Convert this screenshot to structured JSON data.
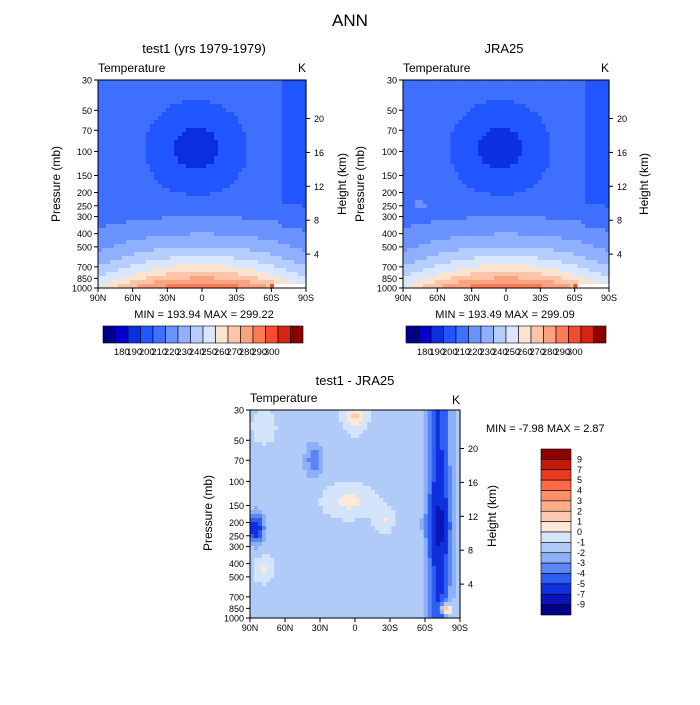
{
  "figure_title": "ANN",
  "chart_data": [
    {
      "type": "heatmap",
      "panel": "model",
      "title": "test1 (yrs 1979-1979)",
      "variable_label": "Temperature",
      "unit": "K",
      "ylabel": "Pressure (mb)",
      "ylabel_right": "Height (km)",
      "x_ticks": [
        "90N",
        "60N",
        "30N",
        "0",
        "30S",
        "60S",
        "90S"
      ],
      "x_values": [
        90,
        60,
        30,
        0,
        -30,
        -60,
        -90
      ],
      "y_ticks": [
        "30",
        "50",
        "70",
        "100",
        "150",
        "200",
        "250",
        "300",
        "400",
        "500",
        "700",
        "850",
        "1000"
      ],
      "y_values": [
        30,
        50,
        70,
        100,
        150,
        200,
        250,
        300,
        400,
        500,
        700,
        850,
        1000
      ],
      "height_ticks": [
        "20",
        "16",
        "12",
        "8",
        "4"
      ],
      "min_max_text": "MIN = 193.94   MAX = 299.22",
      "min": 193.94,
      "max": 299.22,
      "colorbar_labels": [
        "180",
        "190",
        "200",
        "210",
        "220",
        "230",
        "240",
        "250",
        "260",
        "270",
        "280",
        "290",
        "300"
      ],
      "colorbar_levels": [
        180,
        190,
        200,
        210,
        220,
        230,
        240,
        250,
        260,
        270,
        280,
        290,
        300
      ],
      "colorbar_colors": [
        "#00008b",
        "#0000cd",
        "#0a2fe0",
        "#2155ff",
        "#3f6fff",
        "#6a93ff",
        "#8fb0ff",
        "#b6cdff",
        "#d8e6ff",
        "#fbe3d2",
        "#fcc4a8",
        "#fca27f",
        "#fc7a55",
        "#f64c2d",
        "#d42412",
        "#8b0000"
      ]
    },
    {
      "type": "heatmap",
      "panel": "obs",
      "title": "JRA25",
      "variable_label": "Temperature",
      "unit": "K",
      "ylabel": "Pressure (mb)",
      "ylabel_right": "Height (km)",
      "x_ticks": [
        "90N",
        "60N",
        "30N",
        "0",
        "30S",
        "60S",
        "90S"
      ],
      "x_values": [
        90,
        60,
        30,
        0,
        -30,
        -60,
        -90
      ],
      "y_ticks": [
        "30",
        "50",
        "70",
        "100",
        "150",
        "200",
        "250",
        "300",
        "400",
        "500",
        "700",
        "850",
        "1000"
      ],
      "y_values": [
        30,
        50,
        70,
        100,
        150,
        200,
        250,
        300,
        400,
        500,
        700,
        850,
        1000
      ],
      "height_ticks": [
        "20",
        "16",
        "12",
        "8",
        "4"
      ],
      "min_max_text": "MIN = 193.49   MAX = 299.09",
      "min": 193.49,
      "max": 299.09,
      "colorbar_labels": [
        "180",
        "190",
        "200",
        "210",
        "220",
        "230",
        "240",
        "250",
        "260",
        "270",
        "280",
        "290",
        "300"
      ],
      "colorbar_levels": [
        180,
        190,
        200,
        210,
        220,
        230,
        240,
        250,
        260,
        270,
        280,
        290,
        300
      ],
      "colorbar_colors": [
        "#00008b",
        "#0000cd",
        "#0a2fe0",
        "#2155ff",
        "#3f6fff",
        "#6a93ff",
        "#8fb0ff",
        "#b6cdff",
        "#d8e6ff",
        "#fbe3d2",
        "#fcc4a8",
        "#fca27f",
        "#fc7a55",
        "#f64c2d",
        "#d42412",
        "#8b0000"
      ]
    },
    {
      "type": "heatmap",
      "panel": "difference",
      "title": "test1 - JRA25",
      "variable_label": "Temperature",
      "unit": "K",
      "ylabel": "Pressure (mb)",
      "ylabel_right": "Height (km)",
      "x_ticks": [
        "90N",
        "60N",
        "30N",
        "0",
        "30S",
        "60S",
        "90S"
      ],
      "x_values": [
        90,
        60,
        30,
        0,
        -30,
        -60,
        -90
      ],
      "y_ticks": [
        "30",
        "50",
        "70",
        "100",
        "150",
        "200",
        "250",
        "300",
        "400",
        "500",
        "700",
        "850",
        "1000"
      ],
      "y_values": [
        30,
        50,
        70,
        100,
        150,
        200,
        250,
        300,
        400,
        500,
        700,
        850,
        1000
      ],
      "height_ticks": [
        "20",
        "16",
        "12",
        "8",
        "4"
      ],
      "min_max_text": "MIN =  -7.98   MAX =   2.87",
      "min": -7.98,
      "max": 2.87,
      "colorbar_labels": [
        "9",
        "7",
        "5",
        "4",
        "3",
        "2",
        "1",
        "0",
        "-1",
        "-2",
        "-3",
        "-4",
        "-5",
        "-7",
        "-9"
      ],
      "colorbar_levels": [
        9,
        7,
        5,
        4,
        3,
        2,
        1,
        0,
        -1,
        -2,
        -3,
        -4,
        -5,
        -7,
        -9
      ],
      "colorbar_colors": [
        "#8b0000",
        "#c41a0a",
        "#e83a1f",
        "#fc6a45",
        "#fc8f68",
        "#fcae8c",
        "#fccab0",
        "#fde8d8",
        "#d4e4fa",
        "#b0cbf8",
        "#8daff7",
        "#5b86f5",
        "#2d5ff2",
        "#1030e0",
        "#0a14b8",
        "#00008b"
      ]
    }
  ]
}
